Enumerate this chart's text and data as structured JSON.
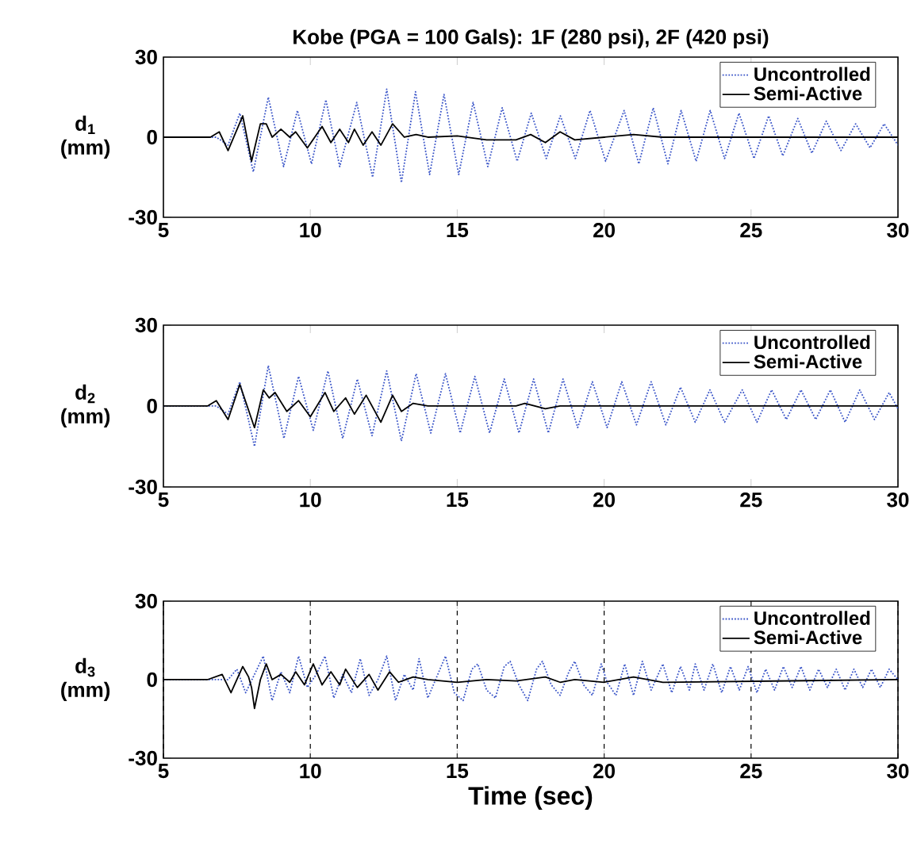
{
  "chart_data": [
    {
      "type": "line",
      "title": "Kobe (PGA = 100 Gals): 1F (280 psi), 2F (420 psi)",
      "ylabel": "d$_{1}$ (mm)",
      "xlim": [
        5,
        30
      ],
      "ylim": [
        -30,
        30
      ],
      "xticks": [
        5,
        10,
        15,
        20,
        25,
        30
      ],
      "yticks": [
        -30,
        0,
        30
      ],
      "legend": "top right",
      "series": [
        {
          "name": "Uncontrolled",
          "color": "#3a55c8",
          "line_style": "dotted",
          "x": [
            5,
            6.8,
            7.2,
            7.6,
            8.06,
            8.57,
            9.09,
            9.56,
            10.04,
            10.53,
            11.0,
            11.58,
            12.12,
            12.6,
            13.1,
            13.58,
            14.06,
            14.55,
            15.05,
            15.54,
            16.04,
            16.53,
            17.04,
            17.52,
            18.03,
            18.51,
            19.02,
            19.52,
            20.05,
            20.68,
            21.18,
            21.67,
            22.17,
            22.62,
            23.13,
            23.61,
            24.1,
            24.59,
            25.1,
            25.6,
            26.08,
            26.59,
            27.07,
            27.56,
            28.06,
            28.56,
            29.05,
            29.53,
            30
          ],
          "values": [
            0,
            0,
            -3,
            9,
            -13,
            15,
            -11,
            10,
            -10,
            14,
            -11,
            13,
            -15,
            18,
            -17,
            17,
            -14,
            16,
            -14,
            13,
            -11,
            11,
            -9,
            9,
            -8,
            8,
            -8,
            10,
            -9,
            10,
            -10,
            11,
            -10,
            10,
            -9,
            10,
            -8,
            9,
            -8,
            8,
            -7,
            7,
            -6,
            6,
            -5,
            5,
            -4,
            5,
            -3
          ]
        },
        {
          "name": "Semi-Active",
          "color": "#000000",
          "line_style": "solid",
          "x": [
            5,
            6.6,
            6.9,
            7.2,
            7.7,
            8.0,
            8.3,
            8.5,
            8.7,
            9.0,
            9.3,
            9.5,
            9.9,
            10.4,
            10.7,
            11.0,
            11.3,
            11.5,
            11.8,
            12.1,
            12.4,
            12.8,
            13.2,
            13.6,
            14,
            15,
            16,
            17,
            17.5,
            18,
            18.5,
            19,
            20,
            21,
            22,
            30
          ],
          "values": [
            0,
            0,
            2,
            -5,
            8,
            -9,
            5,
            5,
            0,
            3,
            0,
            2,
            -4,
            4,
            -2,
            3,
            -2,
            3,
            -3,
            2,
            -3,
            5,
            0,
            1,
            0,
            0.5,
            -1,
            -1,
            1,
            -2,
            2,
            -1,
            0,
            1,
            0,
            0
          ]
        }
      ]
    },
    {
      "type": "line",
      "ylabel": "d$_{2}$ (mm)",
      "xlim": [
        5,
        30
      ],
      "ylim": [
        -30,
        30
      ],
      "xticks": [
        5,
        10,
        15,
        20,
        25,
        30
      ],
      "yticks": [
        -30,
        0,
        30
      ],
      "legend": "top right",
      "series": [
        {
          "name": "Uncontrolled",
          "color": "#3a55c8",
          "line_style": "dotted",
          "x": [
            5,
            6.8,
            7.2,
            7.6,
            8.1,
            8.57,
            9.1,
            9.6,
            10.1,
            10.6,
            11.1,
            11.6,
            12.1,
            12.6,
            13.1,
            13.6,
            14.1,
            14.6,
            15.1,
            15.6,
            16.1,
            16.6,
            17.1,
            17.6,
            18.1,
            18.6,
            19.1,
            19.6,
            20.1,
            20.6,
            21.1,
            21.6,
            22.1,
            22.6,
            23.1,
            23.6,
            24.1,
            24.7,
            25.2,
            25.7,
            26.2,
            26.7,
            27.2,
            27.7,
            28.2,
            28.7,
            29.2,
            29.7,
            30
          ],
          "values": [
            0,
            0,
            -3,
            9,
            -15,
            15,
            -12,
            11,
            -9,
            13,
            -12,
            10,
            -11,
            13,
            -13,
            12,
            -10,
            12,
            -10,
            11,
            -10,
            10,
            -10,
            10,
            -10,
            10,
            -8,
            9,
            -8,
            9,
            -7,
            9,
            -7,
            7,
            -6,
            6,
            -6,
            6,
            -6,
            6,
            -5,
            6,
            -5,
            6,
            -6,
            6,
            -5,
            5,
            -1
          ]
        },
        {
          "name": "Semi-Active",
          "color": "#000000",
          "line_style": "solid",
          "x": [
            5,
            6.5,
            6.8,
            7.2,
            7.6,
            8.1,
            8.4,
            8.6,
            8.8,
            9.2,
            9.6,
            10.0,
            10.5,
            10.8,
            11.2,
            11.5,
            11.9,
            12.4,
            12.8,
            13.1,
            13.5,
            14,
            16,
            17,
            17.3,
            18,
            18.5,
            20,
            30
          ],
          "values": [
            0,
            0,
            2,
            -5,
            8,
            -8,
            6,
            3,
            5,
            -2,
            2,
            -4,
            5,
            -2,
            3,
            -3,
            4,
            -6,
            4,
            -2,
            1,
            0,
            0,
            0,
            1,
            -1,
            0,
            0,
            0
          ]
        }
      ]
    },
    {
      "type": "line",
      "ylabel": "d$_{3}$ (mm)",
      "xlabel": "Time (sec)",
      "xlim": [
        5,
        30
      ],
      "ylim": [
        -30,
        30
      ],
      "xticks": [
        5,
        10,
        15,
        20,
        25,
        30
      ],
      "yticks": [
        -30,
        0,
        30
      ],
      "legend": "top right",
      "grid": "x",
      "series": [
        {
          "name": "Uncontrolled",
          "color": "#3a55c8",
          "line_style": "dotted",
          "x": [
            5,
            7.2,
            7.5,
            7.8,
            8.1,
            8.4,
            8.7,
            9.0,
            9.3,
            9.6,
            9.9,
            10.2,
            10.5,
            10.8,
            11.1,
            11.4,
            11.7,
            12.0,
            12.3,
            12.6,
            12.9,
            13.2,
            13.5,
            13.7,
            14.0,
            14.3,
            14.6,
            14.9,
            15.2,
            15.5,
            15.7,
            16.0,
            16.3,
            16.6,
            16.8,
            17.1,
            17.4,
            17.7,
            17.9,
            18.2,
            18.5,
            18.8,
            19.0,
            19.3,
            19.6,
            19.9,
            20.1,
            20.4,
            20.7,
            21.0,
            21.3,
            21.6,
            22.0,
            22.3,
            22.6,
            22.9,
            23.1,
            23.4,
            23.7,
            24.0,
            24.3,
            24.6,
            24.9,
            25.2,
            25.5,
            25.8,
            26.1,
            26.4,
            26.7,
            27.0,
            27.3,
            27.6,
            27.9,
            28.2,
            28.5,
            28.8,
            29.1,
            29.4,
            29.7,
            30
          ],
          "values": [
            0,
            0,
            4,
            -5,
            2,
            9,
            -8,
            3,
            -5,
            9,
            -3,
            2,
            9,
            -7,
            2,
            -5,
            8,
            -6,
            0,
            9,
            -8,
            2,
            -4,
            8,
            -7,
            1,
            9,
            -5,
            -8,
            4,
            6,
            -4,
            -7,
            5,
            7,
            -2,
            -8,
            4,
            7,
            -2,
            -6,
            3,
            7,
            -2,
            -6,
            6,
            -1,
            -6,
            6,
            -6,
            7,
            -4,
            6,
            -5,
            5,
            -4,
            6,
            -4,
            6,
            -5,
            5,
            -4,
            5,
            -5,
            4,
            -4,
            5,
            -3,
            5,
            -4,
            4,
            -3,
            4,
            -4,
            4,
            -3,
            4,
            -3,
            4,
            0
          ]
        },
        {
          "name": "Semi-Active",
          "color": "#000000",
          "line_style": "solid",
          "x": [
            5,
            6.5,
            7.0,
            7.3,
            7.7,
            7.9,
            8.0,
            8.1,
            8.3,
            8.5,
            8.7,
            9.0,
            9.3,
            9.5,
            9.8,
            10.1,
            10.4,
            10.7,
            11.0,
            11.2,
            11.6,
            12.0,
            12.3,
            12.7,
            13.0,
            13.5,
            14,
            15,
            16,
            17,
            18,
            18.5,
            19,
            20,
            21,
            22,
            30
          ],
          "values": [
            0,
            0,
            2,
            -5,
            5,
            1,
            -3,
            -11,
            0,
            6,
            0,
            2,
            -1,
            3,
            -2,
            6,
            -2,
            3,
            -2,
            4,
            -3,
            2,
            -4,
            3,
            -1,
            1,
            0,
            -1,
            0,
            -0.5,
            1,
            -1,
            0,
            -1,
            1,
            -1,
            0
          ]
        }
      ]
    }
  ]
}
